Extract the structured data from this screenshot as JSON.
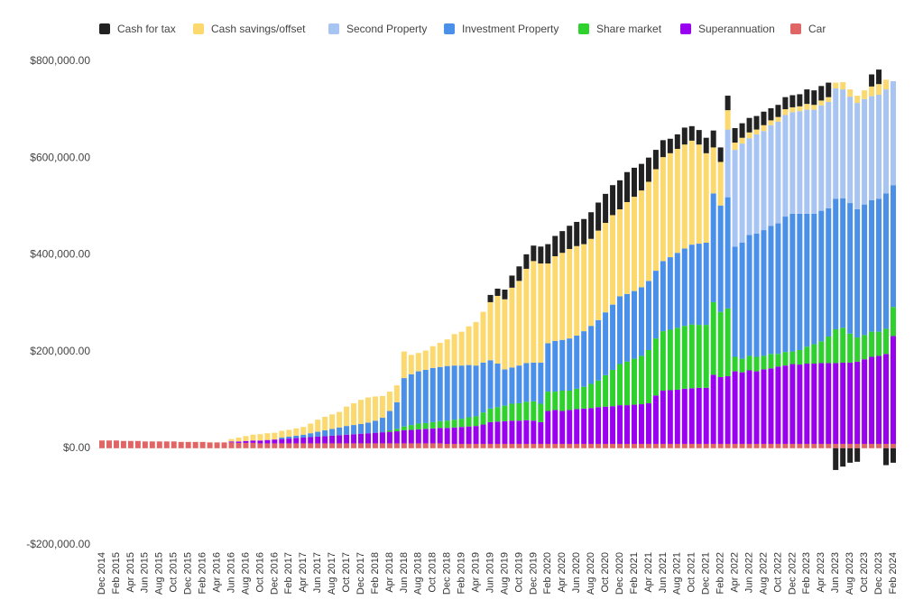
{
  "chart_data": {
    "type": "stacked_bar",
    "categories": [
      "Dec 2014",
      null,
      "Feb 2015",
      null,
      "Apr 2015",
      null,
      "Jun 2015",
      null,
      "Aug 2015",
      null,
      "Oct 2015",
      null,
      "Dec 2015",
      null,
      "Feb 2016",
      null,
      "Apr 2016",
      null,
      "Jun 2016",
      null,
      "Aug 2016",
      null,
      "Oct 2016",
      null,
      "Dec 2016",
      null,
      "Feb 2017",
      null,
      "Apr 2017",
      null,
      "Jun 2017",
      null,
      "Aug 2017",
      null,
      "Oct 2017",
      null,
      "Dec 2017",
      null,
      "Feb 2018",
      null,
      "Apr 2018",
      null,
      "Jun 2018",
      null,
      "Aug 2018",
      null,
      "Oct 2018",
      null,
      "Dec 2018",
      null,
      "Feb 2019",
      null,
      "Apr 2019",
      null,
      "Jun 2019",
      null,
      "Aug 2019",
      null,
      "Oct 2019",
      null,
      "Dec 2019",
      null,
      "Feb 2020",
      null,
      "Apr 2020",
      null,
      "Jun 2020",
      null,
      "Aug 2020",
      null,
      "Oct 2020",
      null,
      "Dec 2020",
      null,
      "Feb 2021",
      null,
      "Apr 2021",
      null,
      "Jun 2021",
      null,
      "Aug 2021",
      null,
      "Oct 2021",
      null,
      "Dec 2021",
      null,
      "Feb 2022",
      null,
      "Apr 2022",
      null,
      "Jun 2022",
      null,
      "Aug 2022",
      null,
      "Oct 2022",
      null,
      "Dec 2022",
      null,
      "Feb 2023",
      null,
      "Apr 2023",
      null,
      "Jun 2023",
      null,
      "Aug 2023",
      null,
      "Oct 2023",
      null,
      "Dec 2023",
      null,
      "Feb 2024"
    ],
    "series": [
      {
        "name": "Cash for tax",
        "color": "#222222",
        "values": [
          0,
          0,
          0,
          0,
          0,
          0,
          0,
          0,
          0,
          0,
          0,
          0,
          0,
          0,
          0,
          0,
          0,
          0,
          0,
          0,
          0,
          0,
          0,
          0,
          0,
          0,
          0,
          0,
          0,
          0,
          0,
          0,
          0,
          0,
          0,
          0,
          0,
          0,
          0,
          0,
          0,
          0,
          0,
          0,
          0,
          0,
          0,
          0,
          0,
          0,
          0,
          0,
          0,
          0,
          15000,
          15000,
          20000,
          25000,
          30000,
          30000,
          32000,
          35000,
          40000,
          42000,
          45000,
          48000,
          50000,
          52000,
          55000,
          58000,
          60000,
          62000,
          60000,
          62000,
          60000,
          55000,
          50000,
          40000,
          35000,
          30000,
          30000,
          35000,
          30000,
          30000,
          32000,
          35000,
          30000,
          30000,
          30000,
          30000,
          30000,
          28000,
          28000,
          25000,
          25000,
          25000,
          25000,
          25000,
          30000,
          30000,
          30000,
          30000,
          -45000,
          -38000,
          -30000,
          -28000,
          0,
          25000,
          30000,
          -35000,
          -30000
        ]
      },
      {
        "name": "Cash savings/offset",
        "color": "#fcd96e",
        "values": [
          0,
          0,
          0,
          0,
          0,
          0,
          0,
          0,
          0,
          0,
          0,
          0,
          0,
          0,
          0,
          0,
          0,
          0,
          5000,
          8000,
          10000,
          12000,
          13000,
          14000,
          14000,
          14000,
          14000,
          15000,
          16000,
          20000,
          25000,
          28000,
          30000,
          32000,
          40000,
          45000,
          50000,
          52000,
          50000,
          45000,
          40000,
          35000,
          55000,
          40000,
          38000,
          40000,
          45000,
          50000,
          55000,
          65000,
          70000,
          80000,
          90000,
          105000,
          120000,
          140000,
          145000,
          165000,
          175000,
          195000,
          210000,
          205000,
          165000,
          175000,
          180000,
          185000,
          185000,
          180000,
          180000,
          185000,
          185000,
          185000,
          180000,
          190000,
          195000,
          200000,
          205000,
          210000,
          215000,
          215000,
          215000,
          215000,
          215000,
          205000,
          185000,
          95000,
          90000,
          40000,
          15000,
          12000,
          12000,
          10000,
          12000,
          10000,
          10000,
          12000,
          10000,
          10000,
          12000,
          10000,
          10000,
          10000,
          12000,
          15000,
          15000,
          15000,
          18000,
          20000,
          22000,
          20000,
          0
        ]
      },
      {
        "name": "Second Property",
        "color": "#a8c4f2",
        "values": [
          0,
          0,
          0,
          0,
          0,
          0,
          0,
          0,
          0,
          0,
          0,
          0,
          0,
          0,
          0,
          0,
          0,
          0,
          0,
          0,
          0,
          0,
          0,
          0,
          0,
          0,
          0,
          0,
          0,
          0,
          0,
          0,
          0,
          0,
          0,
          0,
          0,
          0,
          0,
          0,
          0,
          0,
          0,
          0,
          0,
          0,
          0,
          0,
          0,
          0,
          0,
          0,
          0,
          0,
          0,
          0,
          0,
          0,
          0,
          0,
          0,
          0,
          0,
          0,
          0,
          0,
          0,
          0,
          0,
          0,
          0,
          0,
          0,
          0,
          0,
          0,
          0,
          0,
          0,
          0,
          0,
          0,
          0,
          0,
          0,
          0,
          0,
          140000,
          200000,
          205000,
          200000,
          205000,
          205000,
          208000,
          210000,
          210000,
          210000,
          212000,
          215000,
          215000,
          218000,
          220000,
          228000,
          225000,
          220000,
          220000,
          218000,
          215000,
          215000,
          215000,
          215000
        ]
      },
      {
        "name": "Investment Property",
        "color": "#4a8fe8",
        "values": [
          0,
          0,
          0,
          0,
          0,
          0,
          0,
          0,
          0,
          0,
          0,
          0,
          0,
          0,
          0,
          0,
          0,
          0,
          0,
          0,
          0,
          0,
          0,
          0,
          0,
          3000,
          4000,
          5000,
          6000,
          8000,
          10000,
          12000,
          14000,
          16000,
          18000,
          19000,
          20000,
          22000,
          25000,
          30000,
          40000,
          55000,
          100000,
          105000,
          108000,
          110000,
          112000,
          112000,
          113000,
          112000,
          110000,
          108000,
          105000,
          103000,
          100000,
          90000,
          75000,
          75000,
          78000,
          80000,
          80000,
          85000,
          100000,
          105000,
          105000,
          108000,
          110000,
          115000,
          120000,
          125000,
          130000,
          135000,
          140000,
          140000,
          140000,
          142000,
          143000,
          140000,
          145000,
          150000,
          155000,
          160000,
          165000,
          168000,
          170000,
          225000,
          220000,
          230000,
          228000,
          240000,
          250000,
          255000,
          260000,
          265000,
          270000,
          280000,
          285000,
          282000,
          275000,
          270000,
          270000,
          265000,
          270000,
          268000,
          270000,
          265000,
          270000,
          272000,
          275000,
          280000,
          252000
        ]
      },
      {
        "name": "Share market",
        "color": "#2ed12e",
        "values": [
          0,
          0,
          0,
          0,
          0,
          0,
          0,
          0,
          0,
          0,
          0,
          0,
          0,
          0,
          0,
          0,
          0,
          0,
          0,
          0,
          0,
          0,
          0,
          0,
          0,
          0,
          0,
          0,
          0,
          0,
          0,
          0,
          0,
          0,
          0,
          0,
          0,
          0,
          0,
          0,
          3000,
          5000,
          8000,
          10000,
          12000,
          12000,
          13000,
          14000,
          15000,
          16000,
          17000,
          19000,
          20000,
          25000,
          28000,
          30000,
          32000,
          35000,
          36000,
          38000,
          40000,
          38000,
          40000,
          38000,
          42000,
          40000,
          42000,
          45000,
          50000,
          55000,
          65000,
          75000,
          85000,
          90000,
          95000,
          100000,
          110000,
          118000,
          123000,
          125000,
          128000,
          130000,
          132000,
          130000,
          130000,
          150000,
          135000,
          140000,
          30000,
          28000,
          30000,
          30000,
          28000,
          30000,
          26000,
          28000,
          26000,
          30000,
          35000,
          40000,
          45000,
          55000,
          70000,
          72000,
          60000,
          50000,
          50000,
          52000,
          50000,
          52000,
          60000
        ]
      },
      {
        "name": "Superannuation",
        "color": "#9900ef",
        "values": [
          0,
          0,
          0,
          0,
          0,
          0,
          0,
          0,
          0,
          0,
          0,
          0,
          0,
          0,
          0,
          0,
          0,
          0,
          2000,
          3000,
          4000,
          5000,
          6000,
          7000,
          8000,
          9000,
          10000,
          11000,
          12000,
          13000,
          14000,
          15000,
          16000,
          17000,
          18000,
          19000,
          20000,
          21000,
          22000,
          23000,
          24000,
          25000,
          27000,
          28000,
          29000,
          30000,
          31000,
          32000,
          33000,
          34000,
          35000,
          36000,
          37000,
          40000,
          45000,
          46000,
          47000,
          48000,
          48000,
          49000,
          48000,
          45000,
          68000,
          70000,
          68000,
          70000,
          72000,
          73000,
          74000,
          76000,
          77000,
          78000,
          80000,
          80000,
          81000,
          82000,
          84000,
          100000,
          110000,
          111000,
          112000,
          114000,
          115000,
          116000,
          116000,
          143000,
          138000,
          140000,
          150000,
          148000,
          152000,
          150000,
          154000,
          156000,
          160000,
          162000,
          165000,
          164000,
          166000,
          166000,
          167000,
          167000,
          167000,
          168000,
          168000,
          170000,
          175000,
          180000,
          182000,
          186000,
          223000
        ]
      },
      {
        "name": "Car",
        "color": "#e06666",
        "values": [
          16000,
          16000,
          16000,
          15000,
          15000,
          15000,
          14000,
          14000,
          14000,
          14000,
          14000,
          13000,
          13000,
          13000,
          13000,
          12000,
          12000,
          12000,
          12000,
          11000,
          11000,
          11000,
          10000,
          10000,
          10000,
          10000,
          10000,
          10000,
          10000,
          10000,
          10000,
          10000,
          10000,
          10000,
          10000,
          10000,
          10000,
          10000,
          10000,
          10000,
          10000,
          10000,
          10000,
          10000,
          10000,
          10000,
          10000,
          10000,
          9000,
          9000,
          9000,
          9000,
          9000,
          9000,
          9000,
          9000,
          9000,
          9000,
          9000,
          9000,
          9000,
          9000,
          9000,
          9000,
          9000,
          9000,
          9000,
          9000,
          9000,
          9000,
          9000,
          9000,
          9000,
          9000,
          9000,
          9000,
          9000,
          9000,
          9000,
          9000,
          9000,
          9000,
          9000,
          9000,
          9000,
          9000,
          9000,
          9000,
          9000,
          9000,
          9000,
          9000,
          9000,
          9000,
          9000,
          9000,
          9000,
          9000,
          9000,
          9000,
          9000,
          9000,
          9000,
          9000,
          9000,
          9000,
          9000,
          9000,
          9000,
          9000,
          9000
        ]
      }
    ],
    "ylim": [
      -200000,
      800000
    ],
    "yticks": [
      {
        "value": -200000,
        "label": "-$200,000.00"
      },
      {
        "value": 0,
        "label": "$0.00"
      },
      {
        "value": 200000,
        "label": "$200,000.00"
      },
      {
        "value": 400000,
        "label": "$400,000.00"
      },
      {
        "value": 600000,
        "label": "$600,000.00"
      },
      {
        "value": 800000,
        "label": "$800,000.00"
      }
    ],
    "grid": false,
    "legend": "top"
  }
}
